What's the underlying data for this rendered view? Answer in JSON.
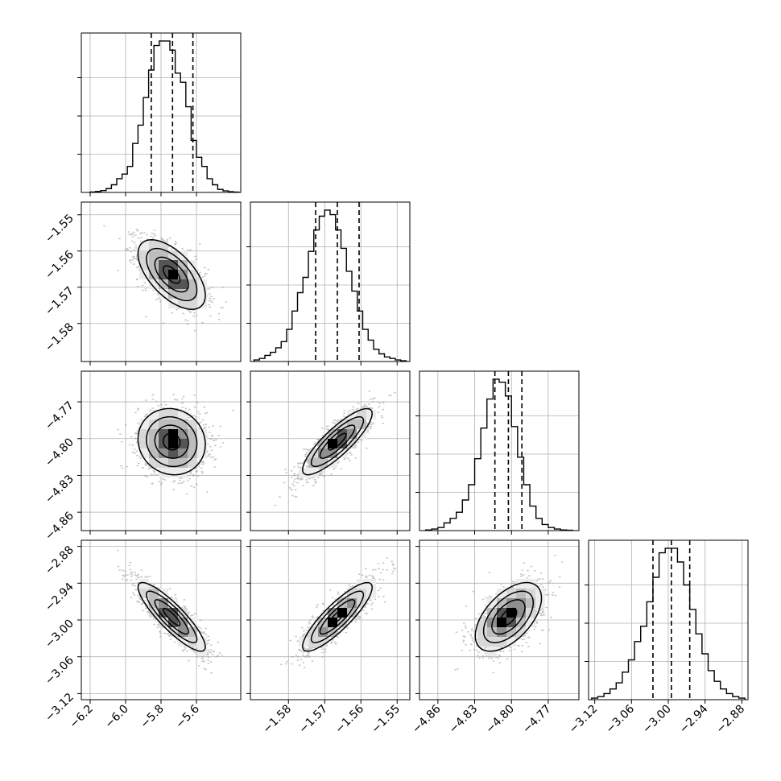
{
  "chart_data": {
    "type": "corner",
    "grid": true,
    "parameters": [
      {
        "index": 0,
        "range": [
          -6.25,
          -5.35
        ],
        "mean": -5.74,
        "sd": 0.095,
        "ticks": [
          -6.2,
          -6.0,
          -5.8,
          -5.6
        ],
        "tick_labels": [
          "−6.2",
          "−6.0",
          "−5.8",
          "−5.6"
        ],
        "quantiles": [
          -5.855,
          -5.735,
          -5.62
        ]
      },
      {
        "index": 1,
        "range": [
          -1.5905,
          -1.5465
        ],
        "mean": -1.5665,
        "sd": 0.0048,
        "ticks": [
          -1.58,
          -1.57,
          -1.56,
          -1.55
        ],
        "tick_labels": [
          "−1.58",
          "−1.57",
          "−1.56",
          "−1.55"
        ],
        "quantiles": [
          -1.5725,
          -1.5665,
          -1.5605
        ]
      },
      {
        "index": 2,
        "range": [
          -4.875,
          -4.745
        ],
        "mean": -4.8025,
        "sd": 0.0135,
        "ticks": [
          -4.86,
          -4.83,
          -4.8,
          -4.77
        ],
        "tick_labels": [
          "−4.86",
          "−4.83",
          "−4.80",
          "−4.77"
        ],
        "quantiles": [
          -4.8135,
          -4.8025,
          -4.7915
        ]
      },
      {
        "index": 3,
        "range": [
          -3.13,
          -2.87
        ],
        "mean": -2.995,
        "sd": 0.028,
        "ticks": [
          -3.12,
          -3.06,
          -3.0,
          -2.94,
          -2.88
        ],
        "tick_labels": [
          "−3.12",
          "−3.06",
          "−3.00",
          "−2.94",
          "−2.88"
        ],
        "quantiles": [
          -3.025,
          -2.995,
          -2.965
        ]
      }
    ],
    "histograms": [
      {
        "param": 0,
        "bins": [
          -6.2,
          -6.17,
          -6.14,
          -6.11,
          -6.08,
          -6.05,
          -6.02,
          -5.99,
          -5.96,
          -5.93,
          -5.9,
          -5.87,
          -5.84,
          -5.81,
          -5.78,
          -5.75,
          -5.72,
          -5.69,
          -5.66,
          -5.63,
          -5.6,
          -5.57,
          -5.54,
          -5.51,
          -5.48,
          -5.45,
          -5.42,
          -5.39,
          -5.36
        ],
        "counts": [
          0.003,
          0.006,
          0.012,
          0.025,
          0.05,
          0.09,
          0.12,
          0.17,
          0.32,
          0.44,
          0.62,
          0.8,
          0.96,
          0.99,
          0.99,
          0.93,
          0.78,
          0.72,
          0.56,
          0.34,
          0.23,
          0.17,
          0.09,
          0.05,
          0.02,
          0.01,
          0.005,
          0.002
        ]
      },
      {
        "param": 1,
        "bins": [
          -1.5895,
          -1.588,
          -1.5865,
          -1.585,
          -1.5835,
          -1.582,
          -1.5805,
          -1.579,
          -1.5775,
          -1.576,
          -1.5745,
          -1.573,
          -1.5715,
          -1.57,
          -1.5685,
          -1.567,
          -1.5655,
          -1.564,
          -1.5625,
          -1.561,
          -1.5595,
          -1.558,
          -1.5565,
          -1.555,
          -1.5535,
          -1.552,
          -1.5505,
          -1.549,
          -1.5475
        ],
        "counts": [
          0.01,
          0.02,
          0.04,
          0.06,
          0.09,
          0.13,
          0.21,
          0.33,
          0.45,
          0.55,
          0.72,
          0.86,
          0.95,
          0.99,
          0.96,
          0.86,
          0.74,
          0.59,
          0.46,
          0.33,
          0.21,
          0.14,
          0.08,
          0.05,
          0.03,
          0.02,
          0.01,
          0.005
        ]
      },
      {
        "param": 2,
        "bins": [
          -4.87,
          -4.865,
          -4.86,
          -4.855,
          -4.85,
          -4.845,
          -4.84,
          -4.835,
          -4.83,
          -4.825,
          -4.82,
          -4.815,
          -4.81,
          -4.805,
          -4.8,
          -4.795,
          -4.79,
          -4.785,
          -4.78,
          -4.775,
          -4.77,
          -4.765,
          -4.76,
          -4.755,
          -4.75
        ],
        "counts": [
          0.004,
          0.01,
          0.02,
          0.05,
          0.08,
          0.12,
          0.2,
          0.3,
          0.47,
          0.67,
          0.86,
          0.99,
          0.97,
          0.88,
          0.68,
          0.48,
          0.3,
          0.16,
          0.08,
          0.04,
          0.02,
          0.01,
          0.004,
          0.002
        ]
      },
      {
        "param": 3,
        "bins": [
          -3.125,
          -3.115,
          -3.105,
          -3.095,
          -3.085,
          -3.075,
          -3.065,
          -3.055,
          -3.045,
          -3.035,
          -3.025,
          -3.015,
          -3.005,
          -2.995,
          -2.985,
          -2.975,
          -2.965,
          -2.955,
          -2.945,
          -2.935,
          -2.925,
          -2.915,
          -2.905,
          -2.895,
          -2.885,
          -2.875
        ],
        "counts": [
          0.01,
          0.02,
          0.04,
          0.07,
          0.11,
          0.18,
          0.26,
          0.38,
          0.48,
          0.64,
          0.8,
          0.96,
          0.99,
          0.99,
          0.9,
          0.75,
          0.59,
          0.43,
          0.3,
          0.19,
          0.12,
          0.07,
          0.04,
          0.02,
          0.01
        ]
      }
    ],
    "pairs": [
      {
        "x": 0,
        "y": 1,
        "rho": -0.6
      },
      {
        "x": 0,
        "y": 2,
        "rho": -0.08
      },
      {
        "x": 1,
        "y": 2,
        "rho": 0.85
      },
      {
        "x": 0,
        "y": 3,
        "rho": -0.87
      },
      {
        "x": 1,
        "y": 3,
        "rho": 0.86
      },
      {
        "x": 2,
        "y": 3,
        "rho": 0.55
      }
    ],
    "contour_levels_sigma": [
      0.5,
      1.0,
      1.5,
      2.0
    ],
    "line_color": "#000000",
    "point_color": "#9a9a9a",
    "grid_color": "#b0b0b0"
  }
}
